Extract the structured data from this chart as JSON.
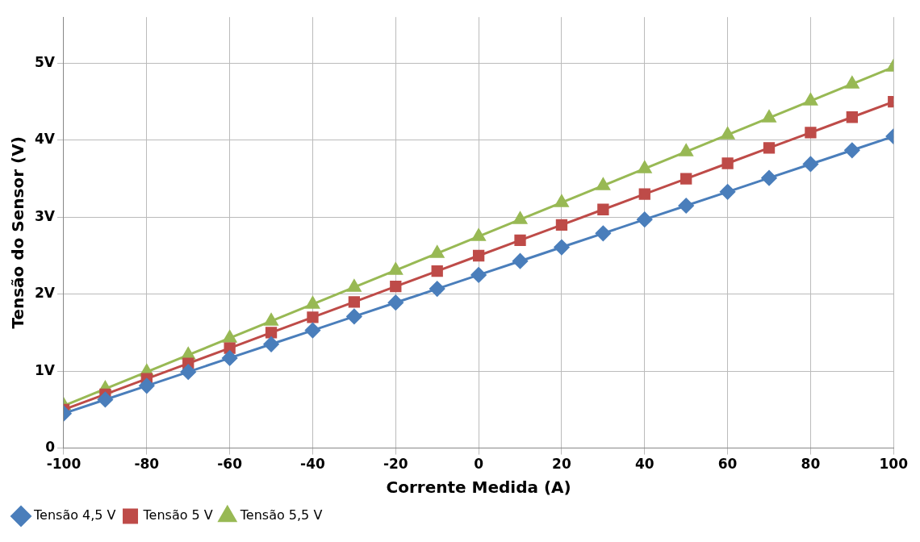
{
  "chart_data": {
    "type": "line",
    "xlabel": "Corrente Medida (A)",
    "ylabel": "Tensão do Sensor (V)",
    "x": [
      -100,
      -90,
      -80,
      -70,
      -60,
      -50,
      -40,
      -30,
      -20,
      -10,
      0,
      10,
      20,
      30,
      40,
      50,
      60,
      70,
      80,
      90,
      100
    ],
    "series": [
      {
        "name": "Tensão 4,5 V",
        "color": "#4a7ebb",
        "marker": "diamond",
        "values": [
          0.45,
          0.63,
          0.81,
          0.99,
          1.17,
          1.35,
          1.53,
          1.71,
          1.89,
          2.07,
          2.25,
          2.43,
          2.61,
          2.79,
          2.97,
          3.15,
          3.33,
          3.51,
          3.69,
          3.87,
          4.05
        ]
      },
      {
        "name": "Tensão 5 V",
        "color": "#be4b48",
        "marker": "square",
        "values": [
          0.5,
          0.7,
          0.9,
          1.1,
          1.3,
          1.5,
          1.7,
          1.9,
          2.1,
          2.3,
          2.5,
          2.7,
          2.9,
          3.1,
          3.3,
          3.5,
          3.7,
          3.9,
          4.1,
          4.3,
          4.5
        ]
      },
      {
        "name": "Tensão 5,5 V",
        "color": "#98b954",
        "marker": "triangle",
        "values": [
          0.55,
          0.77,
          0.99,
          1.21,
          1.43,
          1.65,
          1.87,
          2.09,
          2.31,
          2.53,
          2.75,
          2.97,
          3.19,
          3.41,
          3.63,
          3.85,
          4.07,
          4.29,
          4.51,
          4.73,
          4.95
        ]
      }
    ],
    "xlim": [
      -100,
      100
    ],
    "xticks": [
      -100,
      -80,
      -60,
      -40,
      -20,
      0,
      20,
      40,
      60,
      80,
      100
    ],
    "ylim": [
      0,
      5.6
    ],
    "yticks": [
      0,
      {
        "value": 1,
        "label": "1V"
      },
      {
        "value": 2,
        "label": "2V"
      },
      {
        "value": 3,
        "label": "3V"
      },
      {
        "value": 4,
        "label": "4V"
      },
      {
        "value": 5,
        "label": "5V"
      }
    ],
    "grid": true,
    "legend": "bottom left",
    "line_style": "solid"
  }
}
